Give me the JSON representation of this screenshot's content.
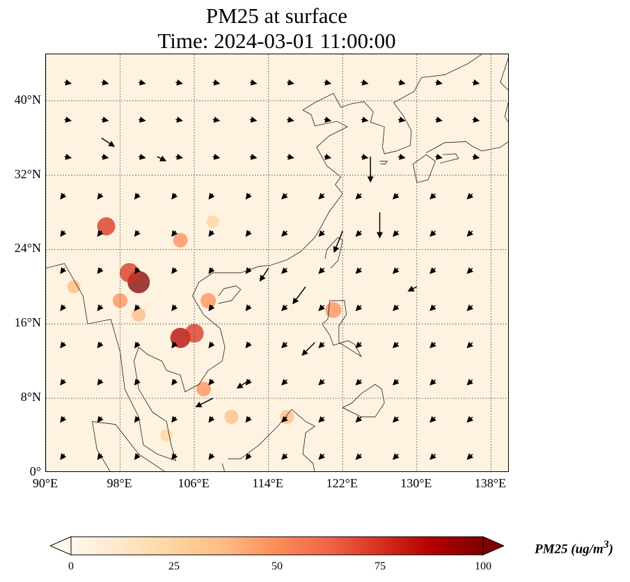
{
  "title_line1": "PM25 at surface",
  "title_line2": "Time: 2024-03-01 11:00:00",
  "map": {
    "lon_range": [
      90,
      140
    ],
    "lat_range": [
      0,
      45
    ],
    "lon_ticks": [
      {
        "value": 90,
        "label": "90°E"
      },
      {
        "value": 98,
        "label": "98°E"
      },
      {
        "value": 106,
        "label": "106°E"
      },
      {
        "value": 114,
        "label": "114°E"
      },
      {
        "value": 122,
        "label": "122°E"
      },
      {
        "value": 130,
        "label": "130°E"
      },
      {
        "value": 138,
        "label": "138°E"
      }
    ],
    "lat_ticks": [
      {
        "value": 0,
        "label": "0°"
      },
      {
        "value": 8,
        "label": "8°N"
      },
      {
        "value": 16,
        "label": "16°N"
      },
      {
        "value": 24,
        "label": "24°N"
      },
      {
        "value": 32,
        "label": "32°N"
      },
      {
        "value": 40,
        "label": "40°N"
      }
    ],
    "colormap": "OrRd",
    "background_color": "#fef2e0",
    "coastline_color": "#000000",
    "grid": "dotted",
    "hotspots": [
      {
        "lon": 100,
        "lat": 20.5,
        "pm25": 100
      },
      {
        "lon": 99,
        "lat": 21.5,
        "pm25": 80
      },
      {
        "lon": 96.5,
        "lat": 26.5,
        "pm25": 70
      },
      {
        "lon": 104.5,
        "lat": 14.5,
        "pm25": 85
      },
      {
        "lon": 106,
        "lat": 15,
        "pm25": 75
      },
      {
        "lon": 107.5,
        "lat": 18.5,
        "pm25": 50
      },
      {
        "lon": 104.5,
        "lat": 25,
        "pm25": 45
      },
      {
        "lon": 98,
        "lat": 18.5,
        "pm25": 45
      },
      {
        "lon": 100,
        "lat": 17,
        "pm25": 40
      },
      {
        "lon": 121,
        "lat": 17.5,
        "pm25": 55
      },
      {
        "lon": 107,
        "lat": 9,
        "pm25": 45
      },
      {
        "lon": 110,
        "lat": 6,
        "pm25": 40
      },
      {
        "lon": 116,
        "lat": 6,
        "pm25": 40
      },
      {
        "lon": 93,
        "lat": 20,
        "pm25": 35
      },
      {
        "lon": 103,
        "lat": 4,
        "pm25": 30
      },
      {
        "lon": 108,
        "lat": 27,
        "pm25": 30
      }
    ],
    "wind_vectors": [
      {
        "lon": 114,
        "lat": 22,
        "u": -2,
        "v": -3
      },
      {
        "lon": 118,
        "lat": 20,
        "u": -3,
        "v": -4
      },
      {
        "lon": 122,
        "lat": 26,
        "u": -2,
        "v": -5
      },
      {
        "lon": 126,
        "lat": 28,
        "u": 0,
        "v": -6
      },
      {
        "lon": 125,
        "lat": 34,
        "u": 0,
        "v": -6
      },
      {
        "lon": 119,
        "lat": 14,
        "u": -3,
        "v": -3
      },
      {
        "lon": 112,
        "lat": 10,
        "u": -3,
        "v": -2
      },
      {
        "lon": 108,
        "lat": 8,
        "u": -4,
        "v": -2
      },
      {
        "lon": 130,
        "lat": 20,
        "u": -2,
        "v": -1
      },
      {
        "lon": 96,
        "lat": 36,
        "u": 3,
        "v": -2
      },
      {
        "lon": 102,
        "lat": 34,
        "u": 2,
        "v": -1
      }
    ]
  },
  "colorbar": {
    "label": "PM25 (ug/m",
    "label_superscript": "3",
    "label_close": ")",
    "min": 0,
    "max": 100,
    "extend": "both",
    "ticks": [
      {
        "value": 0,
        "label": "0"
      },
      {
        "value": 25,
        "label": "25"
      },
      {
        "value": 50,
        "label": "50"
      },
      {
        "value": 75,
        "label": "75"
      },
      {
        "value": 100,
        "label": "100"
      }
    ],
    "colors": [
      "#fff7ec",
      "#fee8c8",
      "#fdd49e",
      "#fdbb84",
      "#fc8d59",
      "#ef6548",
      "#d7301f",
      "#b30000",
      "#7f0000"
    ]
  }
}
